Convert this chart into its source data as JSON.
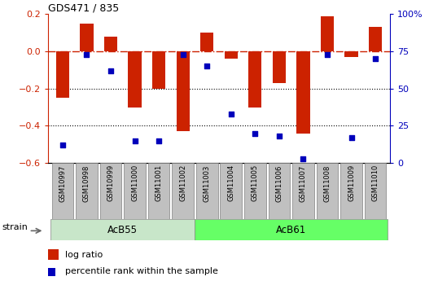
{
  "title": "GDS471 / 835",
  "samples": [
    "GSM10997",
    "GSM10998",
    "GSM10999",
    "GSM11000",
    "GSM11001",
    "GSM11002",
    "GSM11003",
    "GSM11004",
    "GSM11005",
    "GSM11006",
    "GSM11007",
    "GSM11008",
    "GSM11009",
    "GSM11010"
  ],
  "log_ratio": [
    -0.25,
    0.15,
    0.08,
    -0.3,
    -0.2,
    -0.43,
    0.1,
    -0.04,
    -0.3,
    -0.17,
    -0.44,
    0.19,
    -0.03,
    0.13
  ],
  "percentile": [
    12,
    73,
    62,
    15,
    15,
    73,
    65,
    33,
    20,
    18,
    3,
    73,
    17,
    70
  ],
  "acb55_indices": [
    0,
    1,
    2,
    3,
    4,
    5
  ],
  "acb61_indices": [
    6,
    7,
    8,
    9,
    10,
    11,
    12,
    13
  ],
  "acb55_color": "#C8E6C9",
  "acb61_color": "#66FF66",
  "bar_color": "#CC2200",
  "dot_color": "#0000BB",
  "dashed_line_color": "#CC2200",
  "dotted_line_color": "#000000",
  "ylim_left": [
    -0.6,
    0.2
  ],
  "ylim_right": [
    0,
    100
  ],
  "yticks_left": [
    -0.6,
    -0.4,
    -0.2,
    0.0,
    0.2
  ],
  "yticks_right": [
    0,
    25,
    50,
    75,
    100
  ],
  "bg_color": "#FFFFFF",
  "tick_label_color_left": "#CC2200",
  "tick_label_color_right": "#0000BB",
  "legend_bar_label": "log ratio",
  "legend_dot_label": "percentile rank within the sample",
  "strain_label": "strain",
  "bar_width": 0.55,
  "sample_box_color": "#C0C0C0",
  "sample_box_edge_color": "#808080"
}
